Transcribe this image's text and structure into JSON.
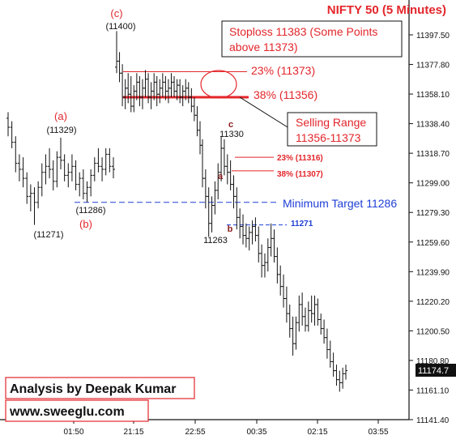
{
  "colors": {
    "red": "#e3262b",
    "blue": "#1f3fd6",
    "price": "#111111",
    "maroon": "#8a1b1b",
    "box_border": "#e3262b",
    "axis": "#111111"
  },
  "chart_data": {
    "type": "ohlc",
    "title": "NIFTY 50 (5 Minutes)",
    "ylim": [
      11141.4,
      11402
    ],
    "y_ticks": [
      "11397.50",
      "11377.80",
      "11358.10",
      "11338.40",
      "11318.70",
      "11299.00",
      "11279.30",
      "11259.60",
      "11239.90",
      "11220.20",
      "11200.50",
      "11180.80",
      "11161.10",
      "11141.40"
    ],
    "x_ticks": [
      "01:50",
      "21:15",
      "22:55",
      "00:35",
      "02:15",
      "03:55"
    ],
    "last_price": "11174.7",
    "bars": [
      [
        11342,
        11346,
        11330,
        11336
      ],
      [
        11336,
        11340,
        11322,
        11326
      ],
      [
        11326,
        11330,
        11306,
        11312
      ],
      [
        11312,
        11318,
        11300,
        11308
      ],
      [
        11308,
        11316,
        11296,
        11302
      ],
      [
        11302,
        11306,
        11285,
        11290
      ],
      [
        11290,
        11298,
        11280,
        11292
      ],
      [
        11292,
        11296,
        11271,
        11286
      ],
      [
        11286,
        11300,
        11282,
        11296
      ],
      [
        11296,
        11312,
        11290,
        11306
      ],
      [
        11306,
        11318,
        11298,
        11310
      ],
      [
        11310,
        11322,
        11302,
        11308
      ],
      [
        11308,
        11314,
        11294,
        11300
      ],
      [
        11300,
        11320,
        11296,
        11316
      ],
      [
        11316,
        11329,
        11308,
        11314
      ],
      [
        11314,
        11318,
        11300,
        11304
      ],
      [
        11304,
        11312,
        11296,
        11306
      ],
      [
        11306,
        11318,
        11300,
        11310
      ],
      [
        11310,
        11314,
        11294,
        11298
      ],
      [
        11298,
        11306,
        11290,
        11302
      ],
      [
        11302,
        11308,
        11288,
        11292
      ],
      [
        11292,
        11300,
        11286,
        11296
      ],
      [
        11296,
        11308,
        11290,
        11304
      ],
      [
        11304,
        11316,
        11300,
        11312
      ],
      [
        11312,
        11322,
        11306,
        11310
      ],
      [
        11310,
        11316,
        11300,
        11308
      ],
      [
        11308,
        11322,
        11304,
        11318
      ],
      [
        11318,
        11322,
        11306,
        11310
      ],
      [
        11310,
        11316,
        11302,
        11308
      ],
      [
        11376,
        11400,
        11372,
        11380
      ],
      [
        11380,
        11386,
        11366,
        11372
      ],
      [
        11372,
        11378,
        11350,
        11356
      ],
      [
        11356,
        11368,
        11348,
        11362
      ],
      [
        11362,
        11372,
        11352,
        11358
      ],
      [
        11358,
        11370,
        11346,
        11350
      ],
      [
        11350,
        11364,
        11346,
        11360
      ],
      [
        11360,
        11372,
        11354,
        11366
      ],
      [
        11366,
        11370,
        11350,
        11356
      ],
      [
        11356,
        11368,
        11348,
        11362
      ],
      [
        11362,
        11374,
        11356,
        11368
      ],
      [
        11368,
        11372,
        11352,
        11356
      ],
      [
        11356,
        11366,
        11348,
        11360
      ],
      [
        11360,
        11372,
        11354,
        11366
      ],
      [
        11366,
        11370,
        11350,
        11358
      ],
      [
        11358,
        11368,
        11352,
        11362
      ],
      [
        11362,
        11372,
        11356,
        11366
      ],
      [
        11366,
        11370,
        11354,
        11360
      ],
      [
        11360,
        11368,
        11352,
        11362
      ],
      [
        11362,
        11372,
        11356,
        11366
      ],
      [
        11366,
        11370,
        11356,
        11360
      ],
      [
        11360,
        11368,
        11354,
        11364
      ],
      [
        11364,
        11368,
        11352,
        11356
      ],
      [
        11356,
        11364,
        11350,
        11360
      ],
      [
        11360,
        11368,
        11354,
        11362
      ],
      [
        11362,
        11366,
        11352,
        11356
      ],
      [
        11356,
        11362,
        11346,
        11350
      ],
      [
        11350,
        11356,
        11340,
        11344
      ],
      [
        11344,
        11350,
        11330,
        11334
      ],
      [
        11334,
        11340,
        11318,
        11324
      ],
      [
        11324,
        11328,
        11296,
        11302
      ],
      [
        11302,
        11308,
        11282,
        11290
      ],
      [
        11290,
        11296,
        11263,
        11272
      ],
      [
        11272,
        11290,
        11266,
        11284
      ],
      [
        11284,
        11300,
        11278,
        11294
      ],
      [
        11294,
        11312,
        11288,
        11306
      ],
      [
        11306,
        11330,
        11300,
        11322
      ],
      [
        11322,
        11328,
        11304,
        11310
      ],
      [
        11310,
        11318,
        11298,
        11306
      ],
      [
        11306,
        11314,
        11294,
        11298
      ],
      [
        11298,
        11304,
        11282,
        11290
      ],
      [
        11290,
        11296,
        11268,
        11276
      ],
      [
        11276,
        11282,
        11262,
        11270
      ],
      [
        11270,
        11278,
        11258,
        11264
      ],
      [
        11264,
        11272,
        11256,
        11262
      ],
      [
        11262,
        11270,
        11254,
        11266
      ],
      [
        11266,
        11274,
        11258,
        11270
      ],
      [
        11270,
        11276,
        11260,
        11264
      ],
      [
        11264,
        11270,
        11246,
        11252
      ],
      [
        11252,
        11258,
        11236,
        11244
      ],
      [
        11244,
        11252,
        11236,
        11246
      ],
      [
        11246,
        11262,
        11240,
        11256
      ],
      [
        11256,
        11272,
        11250,
        11262
      ],
      [
        11262,
        11268,
        11246,
        11250
      ],
      [
        11250,
        11256,
        11232,
        11238
      ],
      [
        11238,
        11244,
        11224,
        11230
      ],
      [
        11230,
        11238,
        11216,
        11222
      ],
      [
        11222,
        11230,
        11206,
        11212
      ],
      [
        11212,
        11218,
        11196,
        11202
      ],
      [
        11202,
        11210,
        11184,
        11192
      ],
      [
        11192,
        11210,
        11188,
        11206
      ],
      [
        11206,
        11224,
        11200,
        11218
      ],
      [
        11218,
        11226,
        11204,
        11210
      ],
      [
        11210,
        11216,
        11200,
        11204
      ],
      [
        11204,
        11220,
        11200,
        11214
      ],
      [
        11214,
        11224,
        11206,
        11212
      ],
      [
        11212,
        11224,
        11204,
        11218
      ],
      [
        11218,
        11222,
        11204,
        11208
      ],
      [
        11208,
        11212,
        11198,
        11202
      ],
      [
        11202,
        11208,
        11192,
        11196
      ],
      [
        11196,
        11202,
        11182,
        11188
      ],
      [
        11188,
        11194,
        11176,
        11180
      ],
      [
        11180,
        11186,
        11170,
        11174
      ],
      [
        11174,
        11178,
        11164,
        11168
      ],
      [
        11168,
        11174,
        11160,
        11166
      ],
      [
        11166,
        11176,
        11162,
        11172
      ],
      [
        11172,
        11178,
        11168,
        11174
      ]
    ],
    "annotations": {
      "wave_c_label": "(c)",
      "wave_c_value": "(11400)",
      "wave_a_label": "(a)",
      "wave_a_value": "(11329)",
      "wave_b_value": "(11286)",
      "wave_b_label": "(b)",
      "low_value": "(11271)",
      "sub_c_label": "c",
      "sub_c_value": "11330",
      "sub_a_label": "a",
      "sub_b_label": "b",
      "sub_b_value": "11263",
      "stoploss_line1": "Stoploss 11383 (Some Points",
      "stoploss_line2": "above 11373)",
      "level_23_top": "23% (11373)",
      "level_38_top": "38%  (11356)",
      "selling_range_line1": "Selling Range",
      "selling_range_line2": "11356-11373",
      "level_23_small": "23% (11316)",
      "level_38_small": "38% (11307)",
      "minimum_target": "Minimum Target 11286",
      "level_11271": "11271"
    }
  },
  "footer": {
    "analysis_by": "Analysis by Deepak Kumar",
    "website": "www.sweeglu.com"
  }
}
